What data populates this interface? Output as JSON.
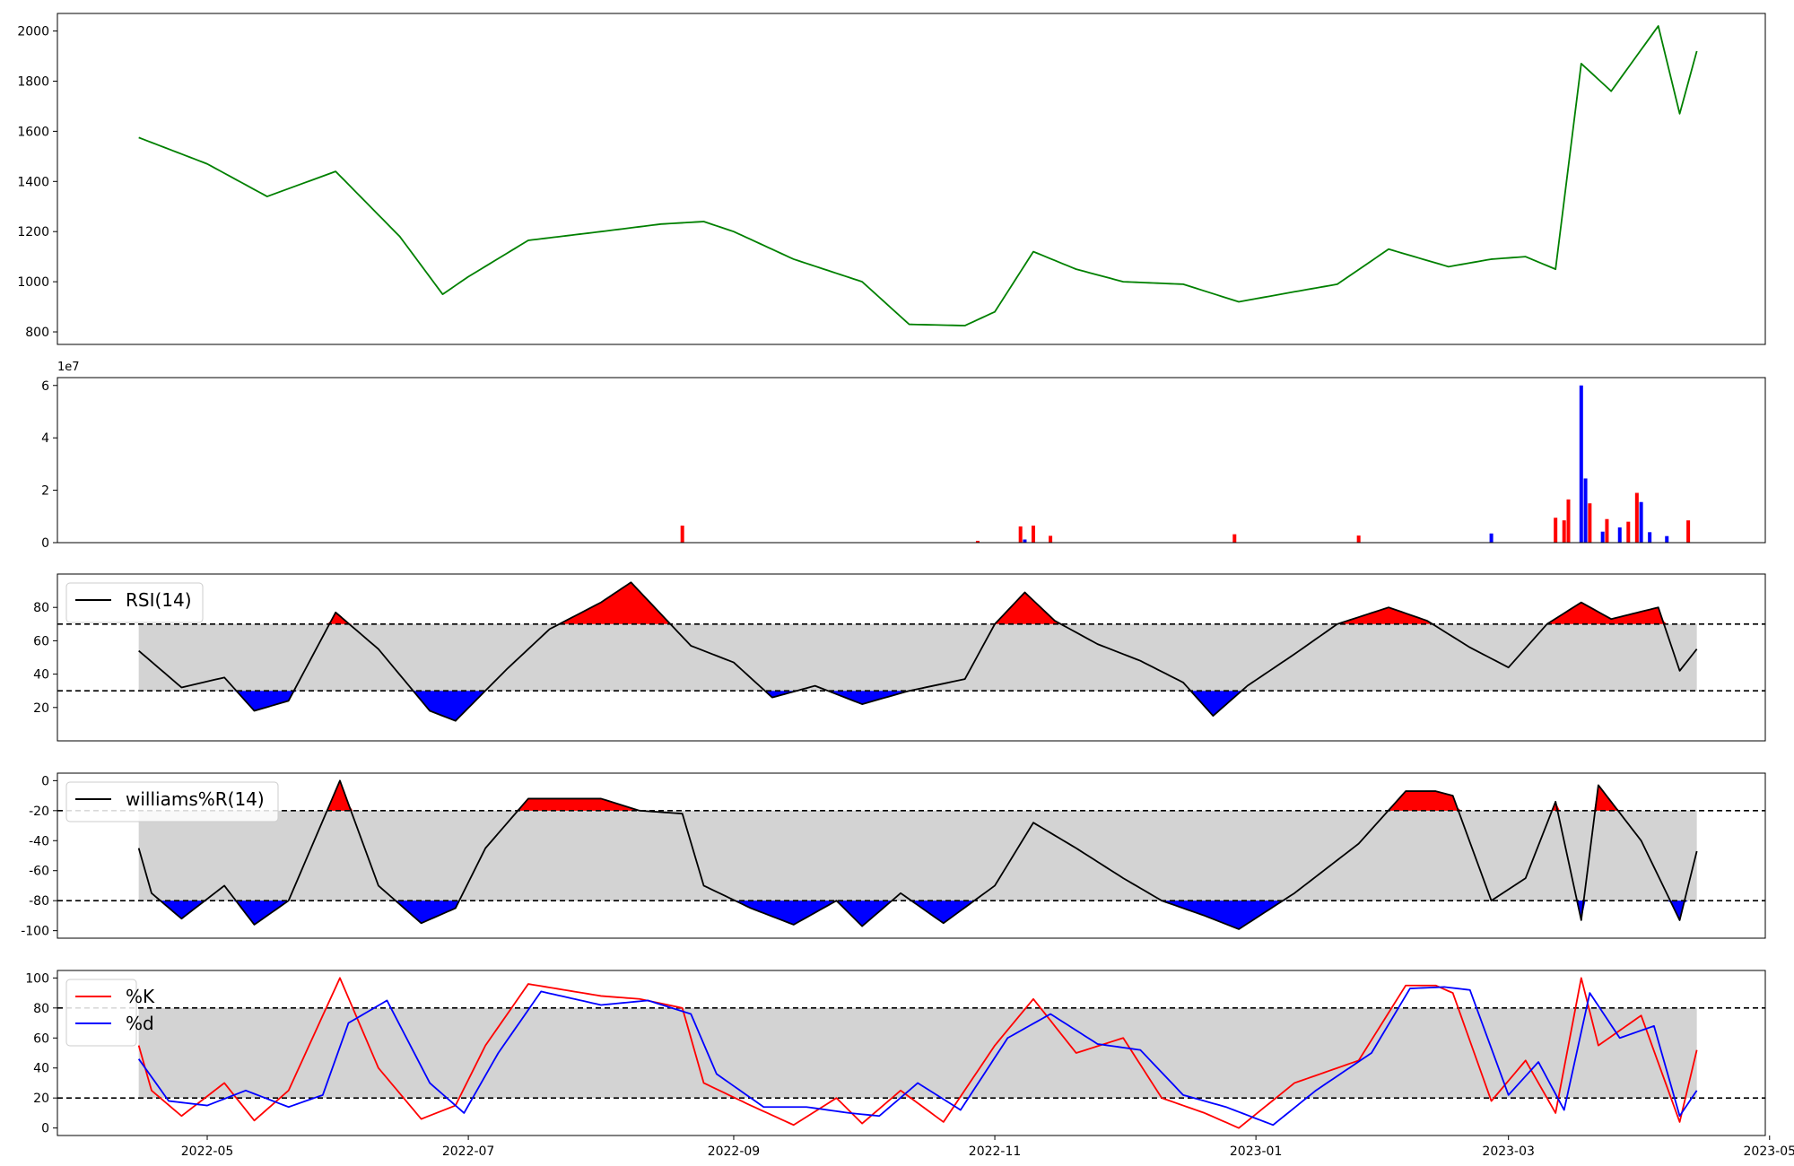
{
  "chart_data": {
    "type": "multi-panel",
    "xaxis": {
      "tick_labels": [
        "2022-05",
        "2022-07",
        "2022-09",
        "2022-11",
        "2023-01",
        "2023-03",
        "2023-05"
      ],
      "tick_dates": [
        "2022-05-01",
        "2022-07-01",
        "2022-09-01",
        "2022-11-01",
        "2023-01-01",
        "2023-03-01",
        "2023-05-01"
      ],
      "xlim": [
        "2022-03-27",
        "2023-04-30"
      ]
    },
    "colors": {
      "price": "#008000",
      "up": "#ff0000",
      "down": "#0000ff",
      "band": "#d3d3d3",
      "line": "#000000",
      "k": "#ff0000",
      "d": "#0000ff"
    },
    "panels": [
      {
        "id": "price",
        "type": "line",
        "ylim": [
          750,
          2070
        ],
        "yticks": [
          "800",
          "1000",
          "1200",
          "1400",
          "1600",
          "1800",
          "2000"
        ],
        "ytick_values": [
          800,
          1000,
          1200,
          1400,
          1600,
          1800,
          2000
        ],
        "series": [
          {
            "x": [
              "2022-04-15",
              "2022-05-01",
              "2022-05-15",
              "2022-05-31",
              "2022-06-15",
              "2022-06-25",
              "2022-07-01",
              "2022-07-15",
              "2022-08-01",
              "2022-08-15",
              "2022-08-25",
              "2022-09-01",
              "2022-09-15",
              "2022-10-01",
              "2022-10-12",
              "2022-10-25",
              "2022-11-01",
              "2022-11-10",
              "2022-11-20",
              "2022-12-01",
              "2022-12-15",
              "2022-12-28",
              "2023-01-10",
              "2023-01-20",
              "2023-02-01",
              "2023-02-15",
              "2023-02-25",
              "2023-03-05",
              "2023-03-12",
              "2023-03-18",
              "2023-03-25",
              "2023-04-05",
              "2023-04-10",
              "2023-04-14"
            ],
            "y": [
              1575,
              1470,
              1340,
              1440,
              1180,
              950,
              1020,
              1165,
              1200,
              1230,
              1240,
              1200,
              1090,
              1000,
              830,
              825,
              880,
              1120,
              1050,
              1000,
              990,
              920,
              960,
              990,
              1130,
              1060,
              1090,
              1100,
              1050,
              1870,
              1760,
              2020,
              1670,
              1920
            ]
          }
        ]
      },
      {
        "id": "volume",
        "type": "bar",
        "ylim": [
          0,
          63000000
        ],
        "offset_label": "1e7",
        "yticks": [
          "0",
          "2",
          "4",
          "6"
        ],
        "ytick_values": [
          0,
          20000000,
          40000000,
          60000000
        ],
        "series": [
          {
            "x": [
              "2022-08-20",
              "2022-10-28",
              "2022-11-07",
              "2022-11-10",
              "2022-11-14",
              "2022-12-27",
              "2023-01-25",
              "2023-03-12",
              "2023-03-14",
              "2023-03-15",
              "2023-03-20",
              "2023-03-24",
              "2023-03-29",
              "2023-03-31",
              "2023-04-12"
            ],
            "values": [
              6500000,
              700000,
              6200000,
              6500000,
              2600000,
              3200000,
              2700000,
              9500000,
              8500000,
              16500000,
              15000000,
              9000000,
              8000000,
              19000000,
              8500000
            ]
          },
          {
            "x": [
              "2022-11-08",
              "2023-02-25",
              "2023-03-18",
              "2023-03-19",
              "2023-03-23",
              "2023-03-27",
              "2023-04-01",
              "2023-04-03",
              "2023-04-07"
            ],
            "values": [
              1200000,
              3500000,
              60000000,
              24500000,
              4200000,
              5800000,
              15500000,
              4000000,
              2500000
            ]
          }
        ]
      },
      {
        "id": "rsi",
        "type": "line",
        "ylim": [
          0,
          100
        ],
        "yticks": [
          "20",
          "40",
          "60",
          "80"
        ],
        "ytick_values": [
          20,
          40,
          60,
          80
        ],
        "band": [
          30,
          70
        ],
        "series": [
          {
            "name": "RSI(14)",
            "x": [
              "2022-04-15",
              "2022-04-25",
              "2022-05-05",
              "2022-05-12",
              "2022-05-20",
              "2022-05-31",
              "2022-06-10",
              "2022-06-22",
              "2022-06-28",
              "2022-07-10",
              "2022-07-20",
              "2022-08-01",
              "2022-08-08",
              "2022-08-15",
              "2022-08-22",
              "2022-09-01",
              "2022-09-10",
              "2022-09-20",
              "2022-10-01",
              "2022-10-12",
              "2022-10-25",
              "2022-11-01",
              "2022-11-08",
              "2022-11-15",
              "2022-11-25",
              "2022-12-05",
              "2022-12-15",
              "2022-12-22",
              "2022-12-30",
              "2023-01-10",
              "2023-01-20",
              "2023-02-01",
              "2023-02-10",
              "2023-02-20",
              "2023-03-01",
              "2023-03-10",
              "2023-03-18",
              "2023-03-25",
              "2023-04-05",
              "2023-04-10",
              "2023-04-14"
            ],
            "y": [
              54,
              32,
              38,
              18,
              24,
              77,
              55,
              18,
              12,
              43,
              67,
              83,
              95,
              76,
              57,
              47,
              26,
              33,
              22,
              30,
              37,
              70,
              89,
              72,
              58,
              48,
              35,
              15,
              33,
              52,
              70,
              80,
              72,
              56,
              44,
              70,
              83,
              73,
              80,
              42,
              55
            ]
          }
        ]
      },
      {
        "id": "williams",
        "type": "line",
        "ylim": [
          -105,
          5
        ],
        "yticks": [
          "-100",
          "-80",
          "-60",
          "-40",
          "-20",
          "0"
        ],
        "ytick_values": [
          -100,
          -80,
          -60,
          -40,
          -20,
          0
        ],
        "band": [
          -80,
          -20
        ],
        "series": [
          {
            "name": "williams%R(14)",
            "x": [
              "2022-04-15",
              "2022-04-18",
              "2022-04-25",
              "2022-05-05",
              "2022-05-12",
              "2022-05-20",
              "2022-06-01",
              "2022-06-10",
              "2022-06-20",
              "2022-06-28",
              "2022-07-05",
              "2022-07-15",
              "2022-08-01",
              "2022-08-10",
              "2022-08-20",
              "2022-08-25",
              "2022-09-05",
              "2022-09-15",
              "2022-09-25",
              "2022-10-01",
              "2022-10-10",
              "2022-10-20",
              "2022-11-01",
              "2022-11-10",
              "2022-11-20",
              "2022-12-01",
              "2022-12-10",
              "2022-12-20",
              "2022-12-28",
              "2023-01-10",
              "2023-01-25",
              "2023-02-05",
              "2023-02-12",
              "2023-02-16",
              "2023-02-25",
              "2023-03-05",
              "2023-03-12",
              "2023-03-18",
              "2023-03-22",
              "2023-04-01",
              "2023-04-10",
              "2023-04-14"
            ],
            "y": [
              -45,
              -75,
              -92,
              -70,
              -96,
              -80,
              0,
              -70,
              -95,
              -85,
              -45,
              -12,
              -12,
              -20,
              -22,
              -70,
              -85,
              -96,
              -80,
              -97,
              -75,
              -95,
              -70,
              -28,
              -45,
              -65,
              -80,
              -90,
              -99,
              -75,
              -42,
              -7,
              -7,
              -10,
              -80,
              -65,
              -14,
              -93,
              -3,
              -40,
              -93,
              -47
            ]
          }
        ]
      },
      {
        "id": "stoch",
        "type": "line",
        "ylim": [
          -5,
          105
        ],
        "yticks": [
          "0",
          "20",
          "40",
          "60",
          "80",
          "100"
        ],
        "ytick_values": [
          0,
          20,
          40,
          60,
          80,
          100
        ],
        "band": [
          20,
          80
        ],
        "series": [
          {
            "name": "%K",
            "x": [
              "2022-04-15",
              "2022-04-18",
              "2022-04-25",
              "2022-05-05",
              "2022-05-12",
              "2022-05-20",
              "2022-06-01",
              "2022-06-10",
              "2022-06-20",
              "2022-06-28",
              "2022-07-05",
              "2022-07-15",
              "2022-08-01",
              "2022-08-10",
              "2022-08-20",
              "2022-08-25",
              "2022-09-05",
              "2022-09-15",
              "2022-09-25",
              "2022-10-01",
              "2022-10-10",
              "2022-10-20",
              "2022-11-01",
              "2022-11-10",
              "2022-11-20",
              "2022-12-01",
              "2022-12-10",
              "2022-12-20",
              "2022-12-28",
              "2023-01-10",
              "2023-01-25",
              "2023-02-05",
              "2023-02-12",
              "2023-02-16",
              "2023-02-25",
              "2023-03-05",
              "2023-03-12",
              "2023-03-18",
              "2023-03-22",
              "2023-04-01",
              "2023-04-10",
              "2023-04-14"
            ],
            "y": [
              55,
              25,
              8,
              30,
              5,
              25,
              100,
              40,
              6,
              15,
              55,
              96,
              88,
              86,
              80,
              30,
              15,
              2,
              20,
              3,
              25,
              4,
              55,
              86,
              50,
              60,
              20,
              10,
              0,
              30,
              45,
              95,
              95,
              90,
              18,
              45,
              10,
              100,
              55,
              75,
              4,
              52
            ]
          },
          {
            "name": "%d",
            "x": [
              "2022-04-15",
              "2022-04-22",
              "2022-05-01",
              "2022-05-10",
              "2022-05-20",
              "2022-05-28",
              "2022-06-03",
              "2022-06-12",
              "2022-06-22",
              "2022-06-30",
              "2022-07-08",
              "2022-07-18",
              "2022-08-01",
              "2022-08-12",
              "2022-08-22",
              "2022-08-28",
              "2022-09-08",
              "2022-09-18",
              "2022-09-28",
              "2022-10-05",
              "2022-10-14",
              "2022-10-24",
              "2022-11-04",
              "2022-11-14",
              "2022-11-25",
              "2022-12-05",
              "2022-12-15",
              "2022-12-25",
              "2023-01-05",
              "2023-01-15",
              "2023-01-28",
              "2023-02-06",
              "2023-02-14",
              "2023-02-20",
              "2023-03-01",
              "2023-03-08",
              "2023-03-14",
              "2023-03-20",
              "2023-03-27",
              "2023-04-04",
              "2023-04-10",
              "2023-04-14"
            ],
            "y": [
              46,
              18,
              15,
              25,
              14,
              22,
              70,
              85,
              30,
              10,
              50,
              91,
              82,
              85,
              76,
              36,
              14,
              14,
              10,
              8,
              30,
              12,
              60,
              76,
              56,
              52,
              22,
              14,
              2,
              25,
              50,
              93,
              94,
              92,
              22,
              44,
              12,
              90,
              60,
              68,
              8,
              25
            ]
          }
        ]
      }
    ]
  }
}
